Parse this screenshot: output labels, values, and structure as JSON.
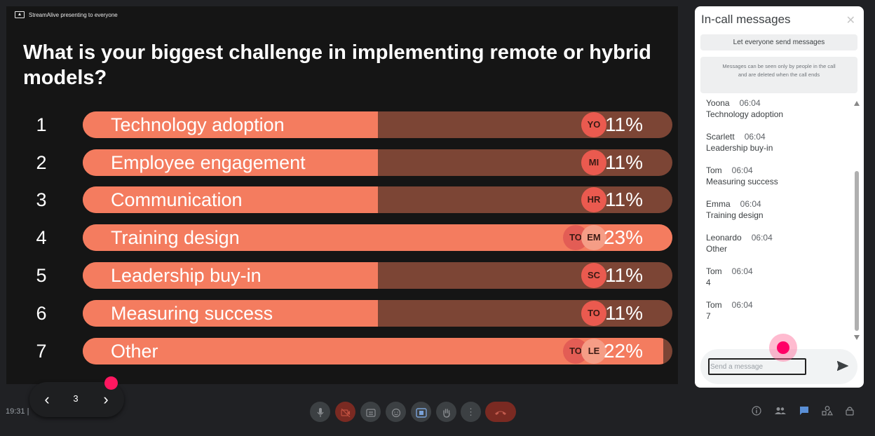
{
  "presenter": {
    "label": "StreamAlive presenting to everyone"
  },
  "poll": {
    "question": "What is your biggest challenge in implementing remote or hybrid models?",
    "options": [
      {
        "num": "1",
        "label": "Technology adoption",
        "percent": "11%",
        "fill_fraction": 0.5,
        "avatars": [
          "YO"
        ]
      },
      {
        "num": "2",
        "label": "Employee engagement",
        "percent": "11%",
        "fill_fraction": 0.5,
        "avatars": [
          "MI"
        ]
      },
      {
        "num": "3",
        "label": "Communication",
        "percent": "11%",
        "fill_fraction": 0.5,
        "avatars": [
          "HR"
        ]
      },
      {
        "num": "4",
        "label": "Training design",
        "percent": "23%",
        "fill_fraction": 1.0,
        "avatars": [
          "TO",
          "EM"
        ]
      },
      {
        "num": "5",
        "label": "Leadership buy-in",
        "percent": "11%",
        "fill_fraction": 0.5,
        "avatars": [
          "SC"
        ]
      },
      {
        "num": "6",
        "label": "Measuring success",
        "percent": "11%",
        "fill_fraction": 0.5,
        "avatars": [
          "TO"
        ]
      },
      {
        "num": "7",
        "label": "Other",
        "percent": "22%",
        "fill_fraction": 0.985,
        "avatars": [
          "TO",
          "LE"
        ]
      }
    ]
  },
  "chat": {
    "title": "In-call messages",
    "close_icon": "close-icon",
    "allow_button": "Let everyone send messages",
    "info": "Messages can be seen only by people in the call and are deleted when the call ends",
    "messages": [
      {
        "sender": "Yoona",
        "time": "06:04",
        "text": "Technology adoption"
      },
      {
        "sender": "Scarlett",
        "time": "06:04",
        "text": "Leadership buy-in"
      },
      {
        "sender": "Tom",
        "time": "06:04",
        "text": "Measuring success"
      },
      {
        "sender": "Emma",
        "time": "06:04",
        "text": "Training design"
      },
      {
        "sender": "Leonardo",
        "time": "06:04",
        "text": "Other"
      },
      {
        "sender": "Tom",
        "time": "06:04",
        "text": "4"
      },
      {
        "sender": "Tom",
        "time": "06:04",
        "text": "7"
      }
    ],
    "input_placeholder": "Send a message",
    "send_icon": "send-icon"
  },
  "page_nav": {
    "current_page": "3",
    "prev_glyph": "‹",
    "next_glyph": "›"
  },
  "bottom_bar": {
    "clock": "19:31 |",
    "controls": [
      "mic-icon",
      "camera-off-icon",
      "captions-icon",
      "emoji-icon",
      "present-icon",
      "raise-hand-icon",
      "more-options-icon",
      "end-call-icon"
    ],
    "right_icons": [
      "info-icon",
      "people-icon",
      "chat-icon",
      "activities-icon",
      "host-controls-icon"
    ]
  },
  "colors": {
    "bar_fill": "#f47c5f",
    "bar_track": "#7c4535",
    "accent": "#ff0066"
  }
}
